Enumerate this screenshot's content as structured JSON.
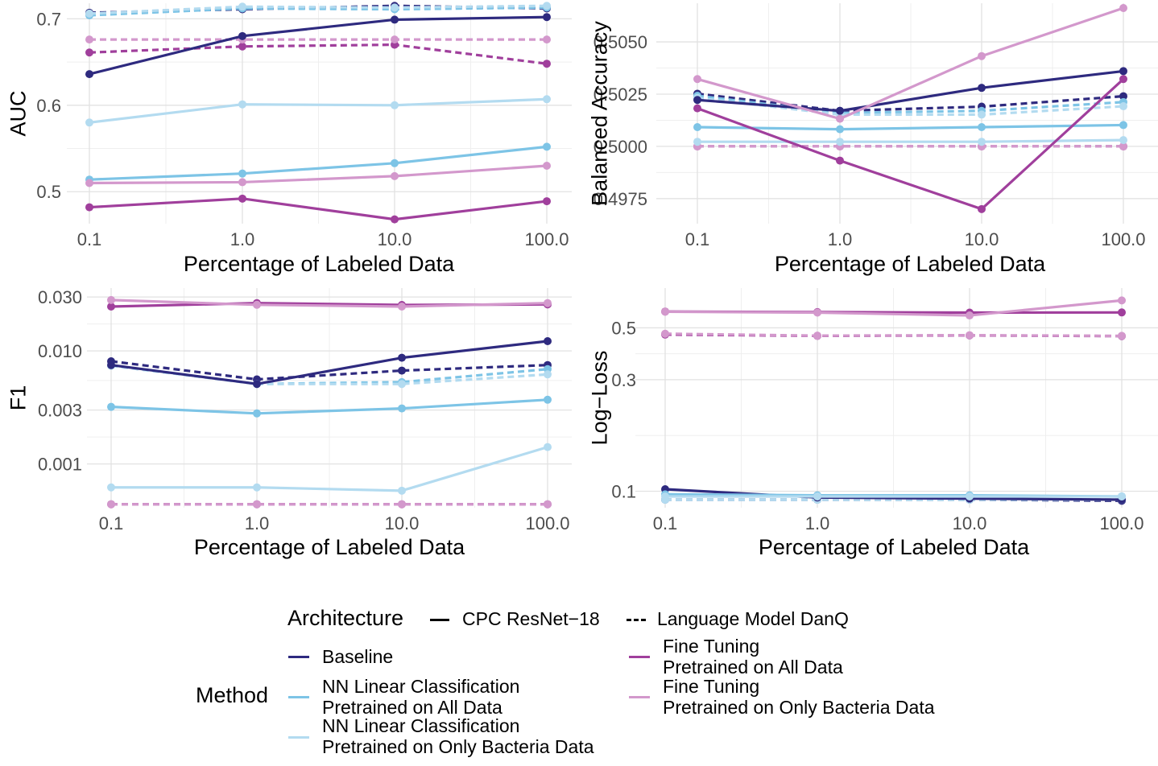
{
  "chart_data": [
    {
      "type": "line",
      "xlabel": "Percentage of Labeled Data",
      "ylabel": "AUC",
      "x_ticks": [
        "0.1",
        "1.0",
        "10.0",
        "100.0"
      ],
      "y_scale": "linear",
      "ylim": [
        0.463,
        0.718
      ],
      "y_ticks": [
        {
          "v": 0.5,
          "l": "0.5"
        },
        {
          "v": 0.6,
          "l": "0.6"
        },
        {
          "v": 0.7,
          "l": "0.7"
        }
      ],
      "grid": true,
      "series": [
        {
          "method": "Baseline",
          "arch": "CPC ResNet−18",
          "values": [
            0.636,
            0.68,
            0.699,
            0.702
          ]
        },
        {
          "method": "Baseline",
          "arch": "Language Model DanQ",
          "values": [
            0.707,
            0.711,
            0.715,
            0.712
          ]
        },
        {
          "method": "NN Linear Classification\nPretrained on All Data",
          "arch": "CPC ResNet−18",
          "values": [
            0.514,
            0.521,
            0.533,
            0.552
          ]
        },
        {
          "method": "NN Linear Classification\nPretrained on All Data",
          "arch": "Language Model DanQ",
          "values": [
            0.704,
            0.712,
            0.711,
            0.713
          ]
        },
        {
          "method": "NN Linear Classification\nPretrained on Only Bacteria Data",
          "arch": "CPC ResNet−18",
          "values": [
            0.58,
            0.601,
            0.6,
            0.607
          ]
        },
        {
          "method": "NN Linear Classification\nPretrained on Only Bacteria Data",
          "arch": "Language Model DanQ",
          "values": [
            0.706,
            0.714,
            0.713,
            0.715
          ]
        },
        {
          "method": "Fine Tuning\nPretrained on All Data",
          "arch": "CPC ResNet−18",
          "values": [
            0.482,
            0.492,
            0.468,
            0.489
          ]
        },
        {
          "method": "Fine Tuning\nPretrained on All Data",
          "arch": "Language Model DanQ",
          "values": [
            0.661,
            0.668,
            0.67,
            0.648
          ]
        },
        {
          "method": "Fine Tuning\nPretrained on Only Bacteria Data",
          "arch": "CPC ResNet−18",
          "values": [
            0.51,
            0.511,
            0.518,
            0.53
          ]
        },
        {
          "method": "Fine Tuning\nPretrained on Only Bacteria Data",
          "arch": "Language Model DanQ",
          "values": [
            0.676,
            0.676,
            0.676,
            0.676
          ]
        }
      ]
    },
    {
      "type": "line",
      "xlabel": "Percentage of Labeled Data",
      "ylabel": "Balanced Accuracy",
      "x_ticks": [
        "0.1",
        "1.0",
        "10.0",
        "100.0"
      ],
      "y_scale": "linear",
      "ylim": [
        0.4963,
        0.50685
      ],
      "y_ticks": [
        {
          "v": 0.4975,
          "l": "0.4975"
        },
        {
          "v": 0.5,
          "l": "0.5000"
        },
        {
          "v": 0.5025,
          "l": "0.5025"
        },
        {
          "v": 0.505,
          "l": "0.5050"
        }
      ],
      "grid": true,
      "series": [
        {
          "method": "Baseline",
          "arch": "CPC ResNet−18",
          "values": [
            0.50222,
            0.5017,
            0.5028,
            0.5036
          ]
        },
        {
          "method": "Baseline",
          "arch": "Language Model DanQ",
          "values": [
            0.50252,
            0.5017,
            0.5019,
            0.5024
          ]
        },
        {
          "method": "NN Linear Classification\nPretrained on All Data",
          "arch": "CPC ResNet−18",
          "values": [
            0.50092,
            0.50082,
            0.50092,
            0.50102
          ]
        },
        {
          "method": "NN Linear Classification\nPretrained on All Data",
          "arch": "Language Model DanQ",
          "values": [
            0.50242,
            0.5016,
            0.5017,
            0.50212
          ]
        },
        {
          "method": "NN Linear Classification\nPretrained on Only Bacteria Data",
          "arch": "CPC ResNet−18",
          "values": [
            0.50022,
            0.50022,
            0.50022,
            0.5003
          ]
        },
        {
          "method": "NN Linear Classification\nPretrained on Only Bacteria Data",
          "arch": "Language Model DanQ",
          "values": [
            0.50232,
            0.50152,
            0.50152,
            0.50192
          ]
        },
        {
          "method": "Fine Tuning\nPretrained on All Data",
          "arch": "CPC ResNet−18",
          "values": [
            0.50182,
            0.49932,
            0.497,
            0.50322
          ]
        },
        {
          "method": "Fine Tuning\nPretrained on All Data",
          "arch": "Language Model DanQ",
          "values": [
            0.5,
            0.5,
            0.5,
            0.5
          ]
        },
        {
          "method": "Fine Tuning\nPretrained on Only Bacteria Data",
          "arch": "CPC ResNet−18",
          "values": [
            0.50322,
            0.50132,
            0.50432,
            0.50662
          ]
        },
        {
          "method": "Fine Tuning\nPretrained on Only Bacteria Data",
          "arch": "Language Model DanQ",
          "values": [
            0.5,
            0.5,
            0.5,
            0.5
          ]
        }
      ]
    },
    {
      "type": "line",
      "xlabel": "Percentage of Labeled Data",
      "ylabel": "F1",
      "x_ticks": [
        "0.1",
        "1.0",
        "10.0",
        "100.0"
      ],
      "y_scale": "log",
      "ylim": [
        0.00041,
        0.036
      ],
      "y_ticks": [
        {
          "v": 0.001,
          "l": "0.001"
        },
        {
          "v": 0.003,
          "l": "0.003"
        },
        {
          "v": 0.01,
          "l": "0.010"
        },
        {
          "v": 0.03,
          "l": "0.030"
        }
      ],
      "grid": true,
      "series": [
        {
          "method": "Baseline",
          "arch": "CPC ResNet−18",
          "values": [
            0.0075,
            0.0051,
            0.0087,
            0.0122
          ]
        },
        {
          "method": "Baseline",
          "arch": "Language Model DanQ",
          "values": [
            0.0081,
            0.0056,
            0.0067,
            0.0075
          ]
        },
        {
          "method": "NN Linear Classification\nPretrained on All Data",
          "arch": "CPC ResNet−18",
          "values": [
            0.0032,
            0.0028,
            0.0031,
            0.0037
          ]
        },
        {
          "method": "NN Linear Classification\nPretrained on All Data",
          "arch": "Language Model DanQ",
          "values": [
            0.0074,
            0.0051,
            0.0053,
            0.0069
          ]
        },
        {
          "method": "NN Linear Classification\nPretrained on Only Bacteria Data",
          "arch": "CPC ResNet−18",
          "values": [
            0.00062,
            0.00062,
            0.00058,
            0.00141
          ]
        },
        {
          "method": "NN Linear Classification\nPretrained on Only Bacteria Data",
          "arch": "Language Model DanQ",
          "values": [
            0.0074,
            0.0051,
            0.0051,
            0.0062
          ]
        },
        {
          "method": "Fine Tuning\nPretrained on All Data",
          "arch": "CPC ResNet−18",
          "values": [
            0.0247,
            0.0265,
            0.0255,
            0.0258
          ]
        },
        {
          "method": "Fine Tuning\nPretrained on All Data",
          "arch": "Language Model DanQ",
          "values": [
            0.00044,
            0.00044,
            0.00044,
            0.00044
          ]
        },
        {
          "method": "Fine Tuning\nPretrained on Only Bacteria Data",
          "arch": "CPC ResNet−18",
          "values": [
            0.0282,
            0.0256,
            0.0247,
            0.0265
          ]
        },
        {
          "method": "Fine Tuning\nPretrained on Only Bacteria Data",
          "arch": "Language Model DanQ",
          "values": [
            0.00044,
            0.00044,
            0.00044,
            0.00044
          ]
        }
      ]
    },
    {
      "type": "line",
      "xlabel": "Percentage of Labeled Data",
      "ylabel": "Log−Loss",
      "x_ticks": [
        "0.1",
        "1.0",
        "10.0",
        "100.0"
      ],
      "y_scale": "log",
      "ylim": [
        0.085,
        0.74
      ],
      "y_ticks": [
        {
          "v": 0.1,
          "l": "0.1"
        },
        {
          "v": 0.3,
          "l": "0.3"
        },
        {
          "v": 0.5,
          "l": "0.5"
        }
      ],
      "grid": true,
      "series": [
        {
          "method": "Baseline",
          "arch": "CPC ResNet−18",
          "values": [
            0.102,
            0.094,
            0.093,
            0.092
          ]
        },
        {
          "method": "Baseline",
          "arch": "Language Model DanQ",
          "values": [
            0.092,
            0.092,
            0.092,
            0.091
          ]
        },
        {
          "method": "NN Linear Classification\nPretrained on All Data",
          "arch": "CPC ResNet−18",
          "values": [
            0.097,
            0.096,
            0.096,
            0.095
          ]
        },
        {
          "method": "NN Linear Classification\nPretrained on All Data",
          "arch": "Language Model DanQ",
          "values": [
            0.092,
            0.092,
            0.092,
            0.092
          ]
        },
        {
          "method": "NN Linear Classification\nPretrained on Only Bacteria Data",
          "arch": "CPC ResNet−18",
          "values": [
            0.095,
            0.095,
            0.095,
            0.095
          ]
        },
        {
          "method": "NN Linear Classification\nPretrained on Only Bacteria Data",
          "arch": "Language Model DanQ",
          "values": [
            0.092,
            0.092,
            0.092,
            0.092
          ]
        },
        {
          "method": "Fine Tuning\nPretrained on All Data",
          "arch": "CPC ResNet−18",
          "values": [
            0.587,
            0.584,
            0.581,
            0.582
          ]
        },
        {
          "method": "Fine Tuning\nPretrained on All Data",
          "arch": "Language Model DanQ",
          "values": [
            0.468,
            0.462,
            0.464,
            0.461
          ]
        },
        {
          "method": "Fine Tuning\nPretrained on Only Bacteria Data",
          "arch": "CPC ResNet−18",
          "values": [
            0.586,
            0.581,
            0.565,
            0.655
          ]
        },
        {
          "method": "Fine Tuning\nPretrained on Only Bacteria Data",
          "arch": "Language Model DanQ",
          "values": [
            0.472,
            0.463,
            0.465,
            0.462
          ]
        }
      ]
    }
  ],
  "method_colors": {
    "Baseline": "#2e2a7f",
    "NN Linear Classification\nPretrained on All Data": "#7dc4e6",
    "NN Linear Classification\nPretrained on Only Bacteria Data": "#b3dbf0",
    "Fine Tuning\nPretrained on All Data": "#a03f9c",
    "Fine Tuning\nPretrained on Only Bacteria Data": "#d398cc"
  },
  "legend": {
    "architecture_title": "Architecture",
    "arch_solid": "CPC ResNet−18",
    "arch_dashed": "Language Model DanQ",
    "method_title": "Method",
    "methods": [
      {
        "l1": "Baseline",
        "l2": ""
      },
      {
        "l1": "NN Linear Classification",
        "l2": "Pretrained on All Data"
      },
      {
        "l1": "NN Linear Classification",
        "l2": "Pretrained on Only Bacteria Data"
      },
      {
        "l1": "Fine Tuning",
        "l2": "Pretrained on All Data"
      },
      {
        "l1": "Fine Tuning",
        "l2": "Pretrained on Only Bacteria Data"
      }
    ]
  }
}
